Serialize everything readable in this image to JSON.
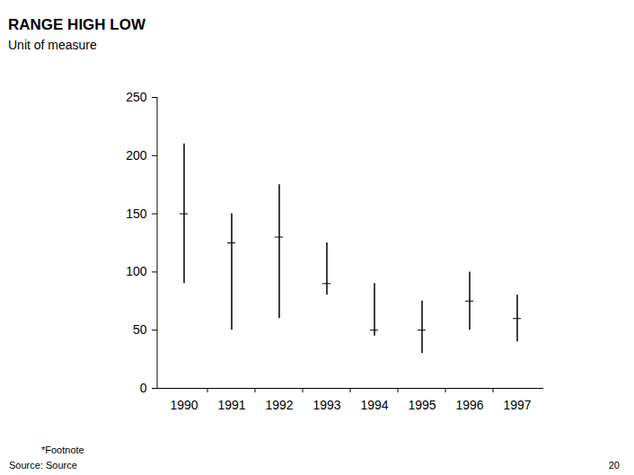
{
  "chart_data": {
    "type": "range",
    "title": "RANGE HIGH LOW",
    "subtitle": "Unit of measure",
    "footnote": "*Footnote",
    "source": "Source: Source",
    "page": "20",
    "categories": [
      "1990",
      "1991",
      "1992",
      "1993",
      "1994",
      "1995",
      "1996",
      "1997"
    ],
    "high": [
      210,
      150,
      175,
      125,
      90,
      75,
      100,
      80
    ],
    "low": [
      90,
      50,
      60,
      80,
      45,
      30,
      50,
      40
    ],
    "values": [
      150,
      125,
      130,
      90,
      50,
      50,
      75,
      60
    ],
    "color": "#000000",
    "ylim": [
      0,
      250
    ],
    "yticks": [
      0,
      50,
      100,
      150,
      200,
      250
    ],
    "grid": false
  }
}
